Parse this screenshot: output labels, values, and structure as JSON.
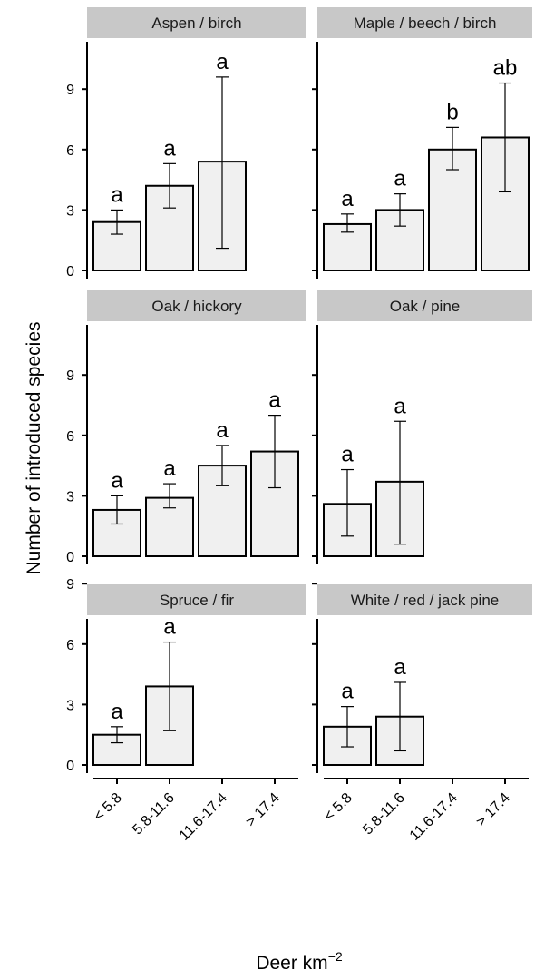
{
  "chart_data": {
    "type": "bar",
    "ylabel": "Number of introduced species",
    "xlabel": "Deer km",
    "xlabel_superscript": "−2",
    "categories": [
      "< 5.8",
      "5.8-11.6",
      "11.6-17.4",
      "> 17.4"
    ],
    "ylim": [
      0,
      11.5
    ],
    "yticks": [
      "0",
      "3",
      "6",
      "9"
    ],
    "bar_fill": "#f0f0f0",
    "bar_stroke": "#000000",
    "strip_fill": "#c8c8c8",
    "panels": [
      {
        "title": "Aspen / birch",
        "bars": [
          {
            "value": 2.4,
            "err_low": 1.8,
            "err_high": 3.0,
            "letter": "a"
          },
          {
            "value": 4.2,
            "err_low": 3.1,
            "err_high": 5.3,
            "letter": "a"
          },
          {
            "value": 5.4,
            "err_low": 1.1,
            "err_high": 9.6,
            "letter": "a"
          }
        ]
      },
      {
        "title": "Maple / beech / birch",
        "bars": [
          {
            "value": 2.3,
            "err_low": 1.9,
            "err_high": 2.8,
            "letter": "a"
          },
          {
            "value": 3.0,
            "err_low": 2.2,
            "err_high": 3.8,
            "letter": "a"
          },
          {
            "value": 6.0,
            "err_low": 5.0,
            "err_high": 7.1,
            "letter": "b"
          },
          {
            "value": 6.6,
            "err_low": 3.9,
            "err_high": 9.3,
            "letter": "ab"
          }
        ]
      },
      {
        "title": "Oak / hickory",
        "bars": [
          {
            "value": 2.3,
            "err_low": 1.6,
            "err_high": 3.0,
            "letter": "a"
          },
          {
            "value": 2.9,
            "err_low": 2.4,
            "err_high": 3.6,
            "letter": "a"
          },
          {
            "value": 4.5,
            "err_low": 3.5,
            "err_high": 5.5,
            "letter": "a"
          },
          {
            "value": 5.2,
            "err_low": 3.4,
            "err_high": 7.0,
            "letter": "a"
          }
        ]
      },
      {
        "title": "Oak / pine",
        "bars": [
          {
            "value": 2.6,
            "err_low": 1.0,
            "err_high": 4.3,
            "letter": "a"
          },
          {
            "value": 3.7,
            "err_low": 0.6,
            "err_high": 6.7,
            "letter": "a"
          }
        ]
      },
      {
        "title": "Spruce / fir",
        "bars": [
          {
            "value": 1.5,
            "err_low": 1.1,
            "err_high": 1.9,
            "letter": "a"
          },
          {
            "value": 3.9,
            "err_low": 1.7,
            "err_high": 6.1,
            "letter": "a"
          }
        ]
      },
      {
        "title": "White / red / jack pine",
        "bars": [
          {
            "value": 1.9,
            "err_low": 0.9,
            "err_high": 2.9,
            "letter": "a"
          },
          {
            "value": 2.4,
            "err_low": 0.7,
            "err_high": 4.1,
            "letter": "a"
          }
        ]
      }
    ]
  }
}
